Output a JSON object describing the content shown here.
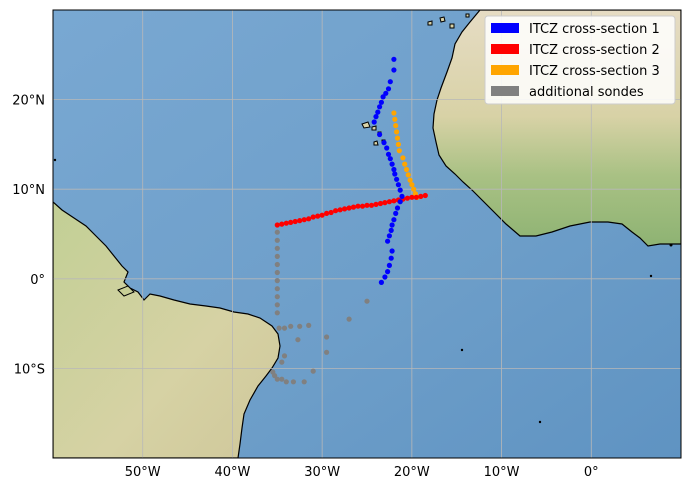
{
  "map": {
    "extent": {
      "lon": [
        -60,
        10
      ],
      "lat": [
        -20,
        30
      ]
    },
    "colors": {
      "ocean": "#6d9ec9",
      "ocean_deep": "#5c8fbf",
      "land": "#d9d3a8",
      "land_green": "#b9c98f",
      "coastline": "#000000",
      "grid": "#b8b8b8"
    },
    "gridlines": true,
    "lon_ticks": [
      {
        "value": -50,
        "label": "50°W"
      },
      {
        "value": -40,
        "label": "40°W"
      },
      {
        "value": -30,
        "label": "30°W"
      },
      {
        "value": -20,
        "label": "20°W"
      },
      {
        "value": -10,
        "label": "10°W"
      },
      {
        "value": 0,
        "label": "0°"
      }
    ],
    "lat_ticks": [
      {
        "value": 20,
        "label": "20°N"
      },
      {
        "value": 10,
        "label": "10°N"
      },
      {
        "value": 0,
        "label": "0°"
      },
      {
        "value": -10,
        "label": "10°S"
      }
    ],
    "legend": {
      "position": "top-right",
      "entries": [
        {
          "label": "ITCZ cross-section 1",
          "color": "#0000ff"
        },
        {
          "label": "ITCZ cross-section 2",
          "color": "#ff0000"
        },
        {
          "label": "ITCZ cross-section 3",
          "color": "#ffa500"
        },
        {
          "label": "additional sondes",
          "color": "#808080"
        }
      ]
    },
    "series": [
      {
        "name": "ITCZ cross-section 1",
        "color": "#0000ff",
        "points": [
          [
            -22.0,
            24.5
          ],
          [
            -22.0,
            23.3
          ],
          [
            -22.4,
            22.0
          ],
          [
            -22.6,
            21.2
          ],
          [
            -22.9,
            20.7
          ],
          [
            -23.2,
            20.3
          ],
          [
            -23.4,
            19.7
          ],
          [
            -23.6,
            19.2
          ],
          [
            -23.8,
            18.6
          ],
          [
            -24.0,
            18.1
          ],
          [
            -24.2,
            17.5
          ],
          [
            -23.6,
            16.1
          ],
          [
            -23.1,
            15.2
          ],
          [
            -22.8,
            14.6
          ],
          [
            -22.6,
            13.9
          ],
          [
            -22.4,
            13.4
          ],
          [
            -22.2,
            12.8
          ],
          [
            -22.0,
            12.2
          ],
          [
            -21.9,
            11.7
          ],
          [
            -21.7,
            11.1
          ],
          [
            -21.5,
            10.5
          ],
          [
            -21.3,
            9.9
          ],
          [
            -21.1,
            9.2
          ],
          [
            -21.3,
            8.6
          ],
          [
            -21.6,
            7.9
          ],
          [
            -21.8,
            7.3
          ],
          [
            -22.0,
            6.6
          ],
          [
            -22.2,
            6.0
          ],
          [
            -22.3,
            5.4
          ],
          [
            -22.5,
            4.8
          ],
          [
            -22.7,
            4.2
          ],
          [
            -22.2,
            3.1
          ],
          [
            -22.3,
            2.3
          ],
          [
            -22.5,
            1.5
          ],
          [
            -22.7,
            0.8
          ],
          [
            -23.0,
            0.2
          ],
          [
            -23.4,
            -0.4
          ]
        ]
      },
      {
        "name": "ITCZ cross-section 2",
        "color": "#ff0000",
        "points": [
          [
            -35.0,
            6.0
          ],
          [
            -34.5,
            6.1
          ],
          [
            -34.0,
            6.2
          ],
          [
            -33.5,
            6.3
          ],
          [
            -33.0,
            6.4
          ],
          [
            -32.5,
            6.5
          ],
          [
            -32.0,
            6.6
          ],
          [
            -31.5,
            6.7
          ],
          [
            -31.0,
            6.9
          ],
          [
            -30.5,
            7.0
          ],
          [
            -30.0,
            7.1
          ],
          [
            -29.5,
            7.3
          ],
          [
            -29.0,
            7.4
          ],
          [
            -28.5,
            7.6
          ],
          [
            -28.0,
            7.7
          ],
          [
            -27.5,
            7.8
          ],
          [
            -27.0,
            7.9
          ],
          [
            -26.5,
            8.0
          ],
          [
            -26.0,
            8.1
          ],
          [
            -25.5,
            8.1
          ],
          [
            -25.0,
            8.2
          ],
          [
            -24.5,
            8.2
          ],
          [
            -24.0,
            8.3
          ],
          [
            -23.5,
            8.4
          ],
          [
            -23.0,
            8.5
          ],
          [
            -22.5,
            8.6
          ],
          [
            -22.0,
            8.7
          ],
          [
            -21.5,
            8.8
          ],
          [
            -21.0,
            8.9
          ],
          [
            -20.5,
            9.0
          ],
          [
            -20.0,
            9.1
          ],
          [
            -19.5,
            9.1
          ],
          [
            -19.0,
            9.2
          ],
          [
            -18.5,
            9.3
          ]
        ]
      },
      {
        "name": "ITCZ cross-section 3",
        "color": "#ffa500",
        "points": [
          [
            -22.0,
            18.5
          ],
          [
            -21.9,
            17.8
          ],
          [
            -21.8,
            17.1
          ],
          [
            -21.7,
            16.4
          ],
          [
            -21.6,
            15.7
          ],
          [
            -21.5,
            15.0
          ],
          [
            -21.4,
            14.3
          ],
          [
            -21.0,
            13.5
          ],
          [
            -20.8,
            12.8
          ],
          [
            -20.6,
            12.2
          ],
          [
            -20.4,
            11.6
          ],
          [
            -20.2,
            11.0
          ],
          [
            -20.0,
            10.5
          ],
          [
            -19.8,
            10.0
          ],
          [
            -19.6,
            9.5
          ],
          [
            -19.4,
            9.1
          ]
        ]
      },
      {
        "name": "additional sondes",
        "color": "#808080",
        "points": [
          [
            -35.0,
            5.2
          ],
          [
            -35.0,
            4.3
          ],
          [
            -35.0,
            3.4
          ],
          [
            -35.0,
            2.5
          ],
          [
            -35.0,
            1.6
          ],
          [
            -35.0,
            0.7
          ],
          [
            -35.0,
            -0.2
          ],
          [
            -35.0,
            -1.1
          ],
          [
            -35.0,
            -2.0
          ],
          [
            -35.0,
            -2.9
          ],
          [
            -35.0,
            -3.8
          ],
          [
            -34.8,
            -5.5
          ],
          [
            -34.2,
            -5.5
          ],
          [
            -33.5,
            -5.3
          ],
          [
            -32.5,
            -5.3
          ],
          [
            -31.5,
            -5.2
          ],
          [
            -32.7,
            -6.8
          ],
          [
            -34.2,
            -8.6
          ],
          [
            -34.5,
            -9.3
          ],
          [
            -29.5,
            -6.5
          ],
          [
            -29.5,
            -8.2
          ],
          [
            -27.0,
            -4.5
          ],
          [
            -25.0,
            -2.5
          ],
          [
            -31.0,
            -10.3
          ],
          [
            -35.5,
            -10.4
          ],
          [
            -35.3,
            -10.8
          ],
          [
            -35.0,
            -11.2
          ],
          [
            -34.5,
            -11.2
          ],
          [
            -34.0,
            -11.5
          ],
          [
            -33.2,
            -11.5
          ],
          [
            -32.0,
            -11.5
          ]
        ]
      }
    ]
  }
}
